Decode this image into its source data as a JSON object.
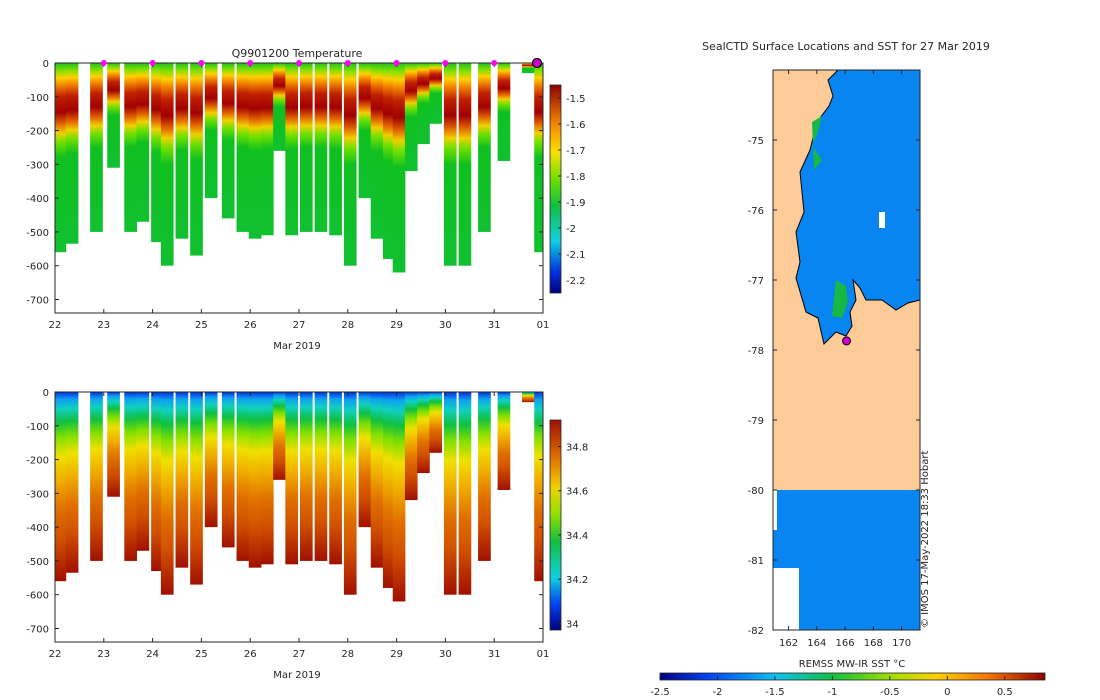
{
  "chart_data": [
    {
      "type": "heatmap",
      "title": "Q9901200  Temperature",
      "xlabel": "Mar 2019",
      "ylabel": "",
      "x_ticks": [
        "22",
        "23",
        "24",
        "25",
        "26",
        "27",
        "28",
        "29",
        "30",
        "31",
        "01"
      ],
      "y_ticks": [
        "0",
        "-100",
        "-200",
        "-300",
        "-400",
        "-500",
        "-600",
        "-700"
      ],
      "ylim": [
        -740,
        0
      ],
      "xlim": [
        22,
        32
      ],
      "colorbar_ticks": [
        "-1.5",
        "-1.6",
        "-1.7",
        "-1.8",
        "-1.9",
        "-2",
        "-2.1",
        "-2.2"
      ],
      "colorbar_range": [
        -2.25,
        -1.45
      ],
      "surface_markers_days": [
        23,
        24,
        25,
        26,
        27,
        28,
        29,
        30,
        31
      ],
      "latest_profile_day": 32,
      "profiles": [
        {
          "day": 22.1,
          "max_depth": 560
        },
        {
          "day": 22.35,
          "max_depth": 535
        },
        {
          "day": 22.85,
          "max_depth": 500
        },
        {
          "day": 23.2,
          "max_depth": 310
        },
        {
          "day": 23.55,
          "max_depth": 500
        },
        {
          "day": 23.8,
          "max_depth": 470
        },
        {
          "day": 24.1,
          "max_depth": 530
        },
        {
          "day": 24.3,
          "max_depth": 600
        },
        {
          "day": 24.6,
          "max_depth": 520
        },
        {
          "day": 24.9,
          "max_depth": 570
        },
        {
          "day": 25.2,
          "max_depth": 400
        },
        {
          "day": 25.55,
          "max_depth": 460
        },
        {
          "day": 25.85,
          "max_depth": 500
        },
        {
          "day": 26.1,
          "max_depth": 520
        },
        {
          "day": 26.35,
          "max_depth": 510
        },
        {
          "day": 26.6,
          "max_depth": 260
        },
        {
          "day": 26.85,
          "max_depth": 510
        },
        {
          "day": 27.15,
          "max_depth": 500
        },
        {
          "day": 27.45,
          "max_depth": 500
        },
        {
          "day": 27.75,
          "max_depth": 510
        },
        {
          "day": 28.05,
          "max_depth": 600
        },
        {
          "day": 28.35,
          "max_depth": 400
        },
        {
          "day": 28.6,
          "max_depth": 520
        },
        {
          "day": 28.85,
          "max_depth": 580
        },
        {
          "day": 29.05,
          "max_depth": 620
        },
        {
          "day": 29.3,
          "max_depth": 320
        },
        {
          "day": 29.55,
          "max_depth": 240
        },
        {
          "day": 29.8,
          "max_depth": 180
        },
        {
          "day": 30.1,
          "max_depth": 600
        },
        {
          "day": 30.4,
          "max_depth": 600
        },
        {
          "day": 30.8,
          "max_depth": 500
        },
        {
          "day": 31.2,
          "max_depth": 290
        },
        {
          "day": 31.7,
          "max_depth": 30
        },
        {
          "day": 31.95,
          "max_depth": 560
        }
      ]
    },
    {
      "type": "heatmap",
      "title": "",
      "xlabel": "Mar 2019",
      "ylabel": "",
      "x_ticks": [
        "22",
        "23",
        "24",
        "25",
        "26",
        "27",
        "28",
        "29",
        "30",
        "31",
        "01"
      ],
      "y_ticks": [
        "0",
        "-100",
        "-200",
        "-300",
        "-400",
        "-500",
        "-600",
        "-700"
      ],
      "ylim": [
        -740,
        0
      ],
      "xlim": [
        22,
        32
      ],
      "colorbar_ticks": [
        "34.8",
        "34.6",
        "34.4",
        "34.2",
        "34"
      ],
      "colorbar_range": [
        33.97,
        34.92
      ],
      "profiles_same_as_temperature": true
    },
    {
      "type": "heatmap",
      "title": "SealCTD Surface Locations and SST for 27 Mar 2019",
      "xlabel": "",
      "ylabel": "",
      "x_ticks": [
        "162",
        "164",
        "166",
        "168",
        "170"
      ],
      "y_ticks": [
        "-75",
        "-76",
        "-77",
        "-78",
        "-79",
        "-80",
        "-81",
        "-82"
      ],
      "xlim": [
        160.9,
        171.3
      ],
      "ylim": [
        -82,
        -74
      ],
      "colorbar_label": "REMSS MW-IR SST °C",
      "colorbar_ticks": [
        "-2.5",
        "-2",
        "-1.5",
        "-1",
        "-0.5",
        "0",
        "0.5"
      ],
      "colorbar_range": [
        -2.5,
        0.85
      ],
      "seal_location": {
        "lon": 166.1,
        "lat": -77.87
      },
      "land_color": "#fccb98",
      "sea_color": "#0885f0",
      "watermark": "© IMOS 17-May-2022 18:33 Hobart"
    }
  ]
}
